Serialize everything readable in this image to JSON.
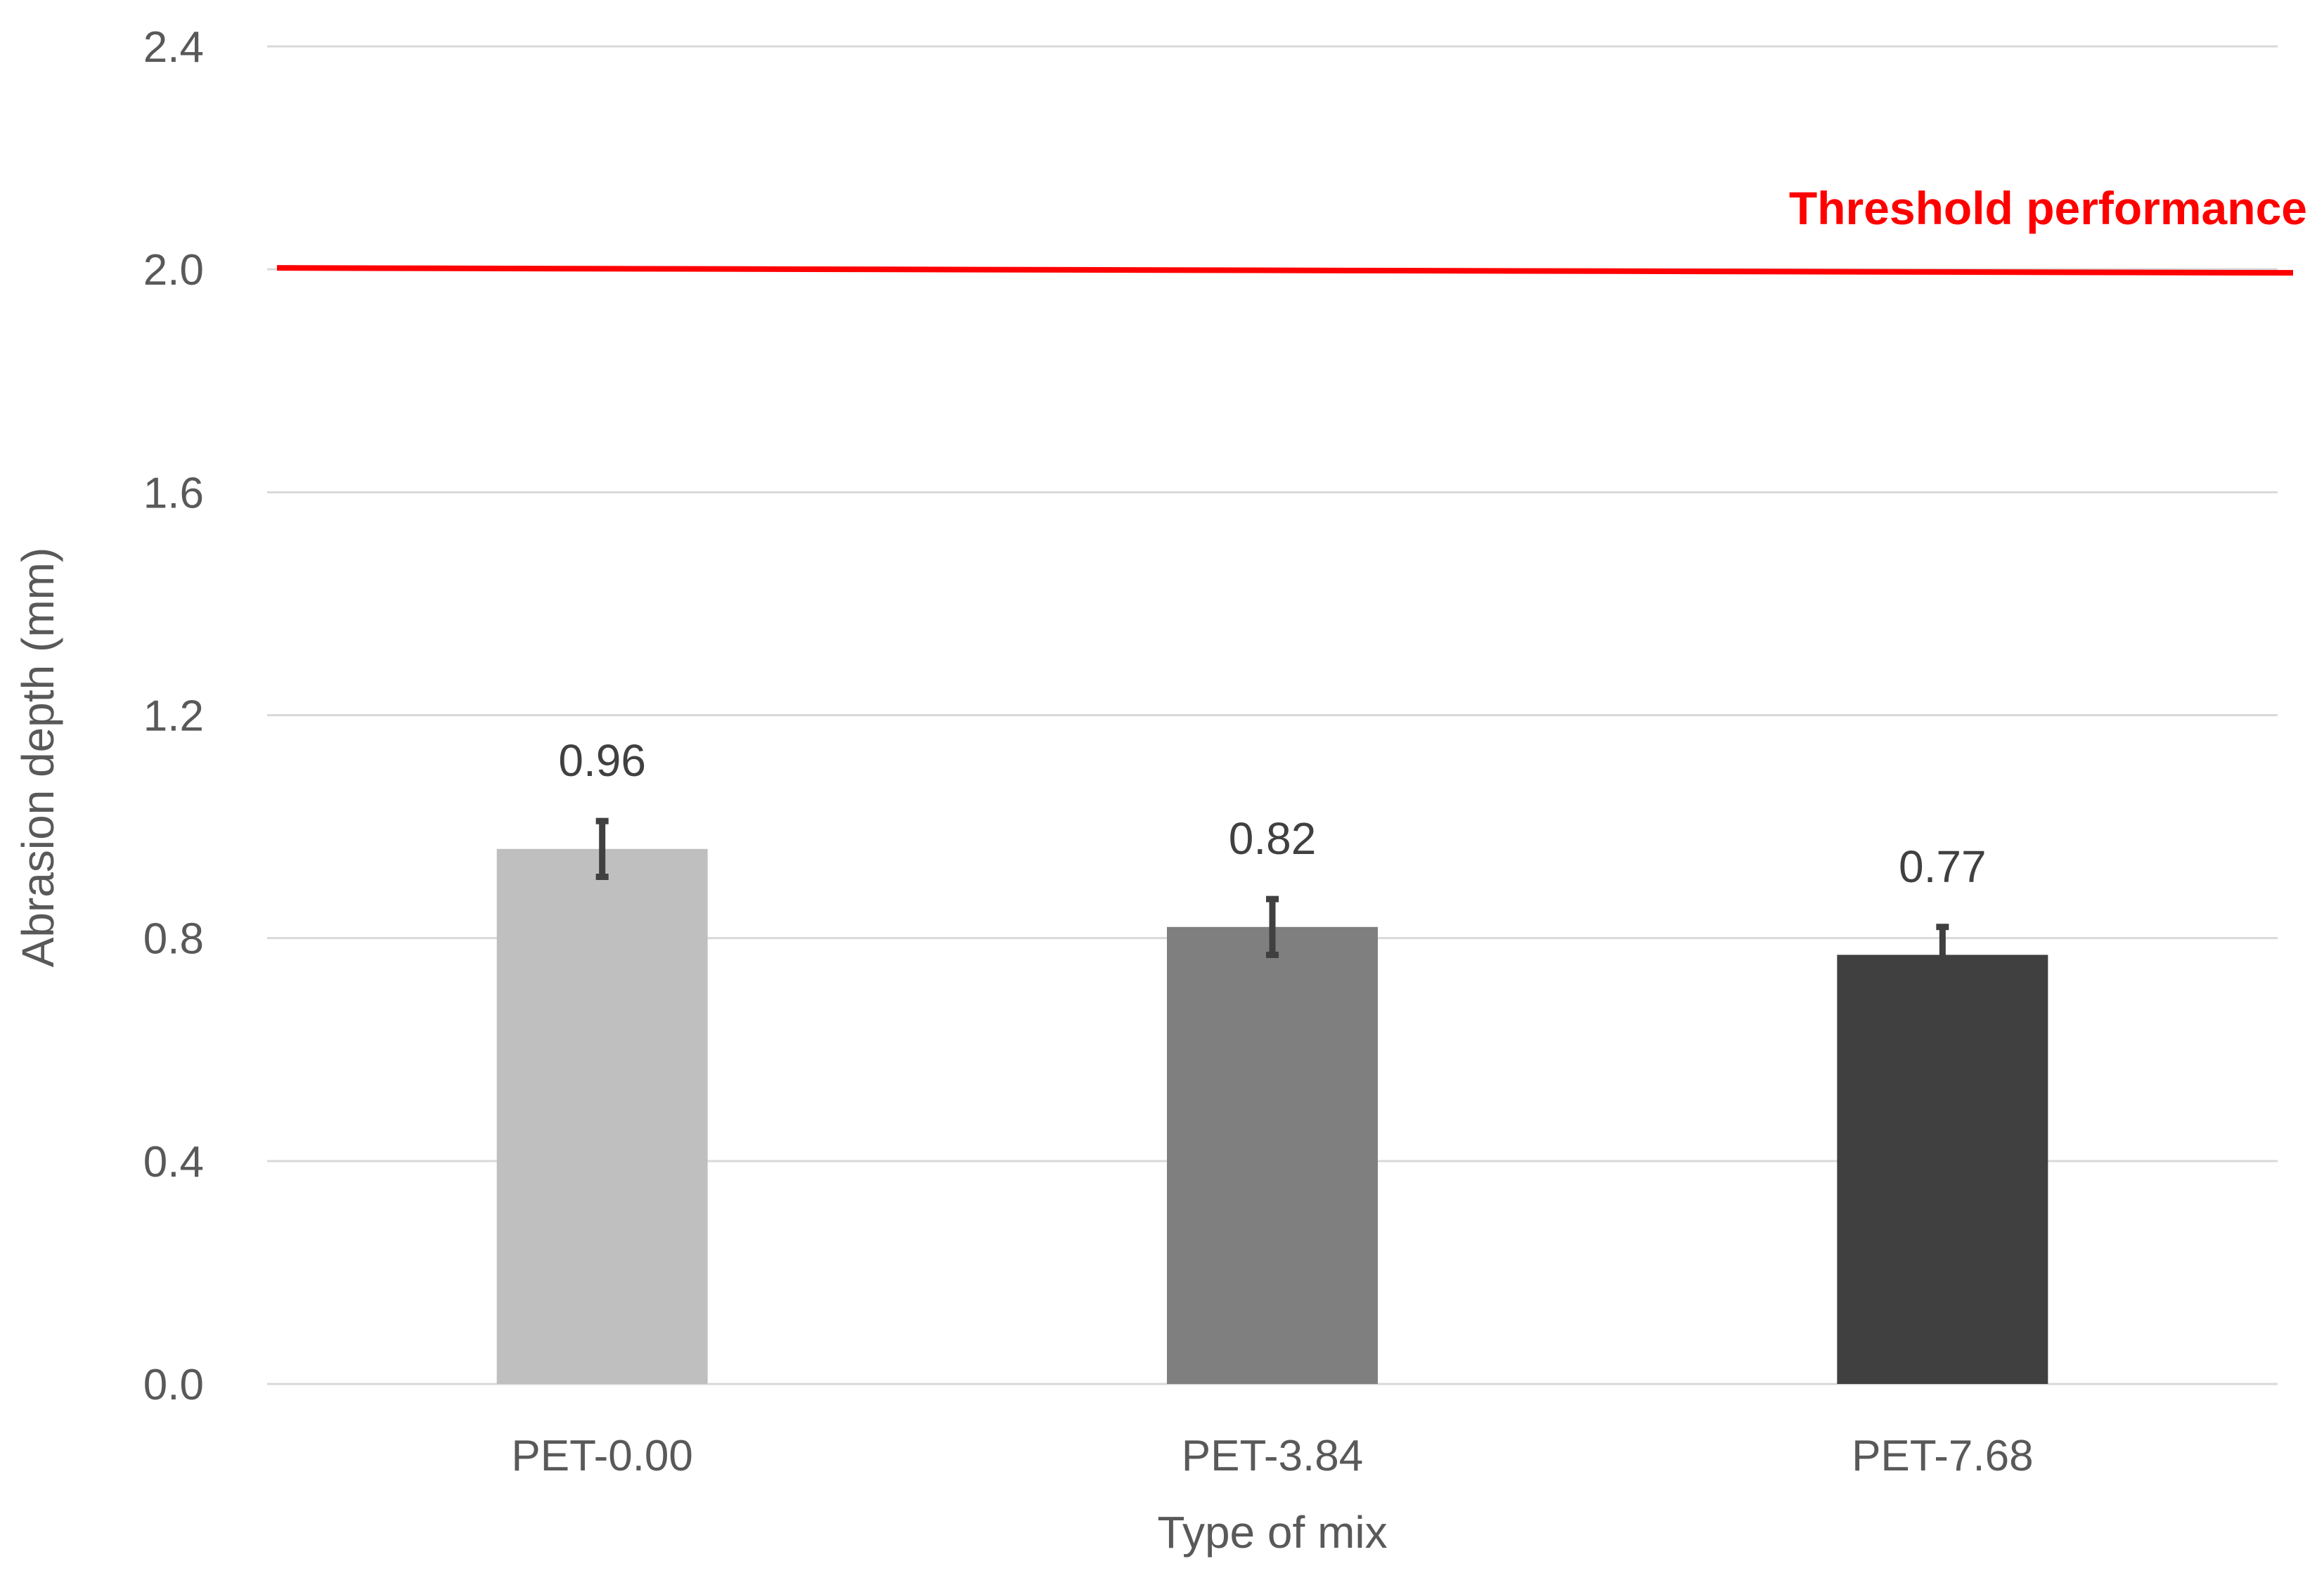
{
  "chart_data": {
    "type": "bar",
    "categories": [
      "PET-0.00",
      "PET-3.84",
      "PET-7.68"
    ],
    "values": [
      0.96,
      0.82,
      0.77
    ],
    "data_labels": [
      "0.96",
      "0.82",
      "0.77"
    ],
    "error": [
      0.05,
      0.05,
      0.05
    ],
    "bar_colors": [
      "#bfbfbf",
      "#7f7f7f",
      "#404040"
    ],
    "xlabel": "Type of mix",
    "ylabel": "Abrasion depth (mm)",
    "ylim": [
      0,
      2.4
    ],
    "yticks": [
      0.0,
      0.4,
      0.8,
      1.2,
      1.6,
      2.0,
      2.4
    ],
    "ytick_labels": [
      "0.0",
      "0.4",
      "0.8",
      "1.2",
      "1.6",
      "2.0",
      "2.4"
    ],
    "grid": true,
    "threshold": {
      "value": 2.0,
      "label": "Threshold performance",
      "color": "#ff0000"
    },
    "colors": {
      "grid": "#d9d9d9",
      "text": "#595959",
      "error_bar": "#404040"
    }
  }
}
